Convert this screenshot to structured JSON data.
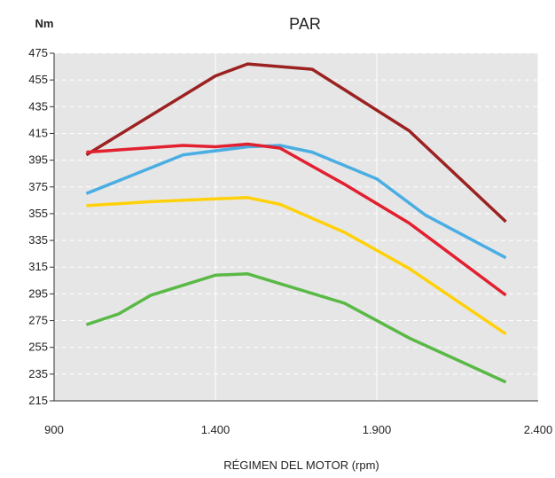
{
  "chart_data": {
    "type": "line",
    "title": "PAR",
    "ylabel": "Nm",
    "xlabel": "RÉGIMEN DEL MOTOR (rpm)",
    "xlim": [
      900,
      2400
    ],
    "ylim": [
      215,
      475
    ],
    "x_ticks": [
      900,
      1400,
      1900,
      2400
    ],
    "x_tick_labels": [
      "900",
      "1.400",
      "1.900",
      "2.400"
    ],
    "y_ticks": [
      215,
      235,
      255,
      275,
      295,
      315,
      335,
      355,
      375,
      395,
      415,
      435,
      455,
      475
    ],
    "grid": true,
    "plot_background": "#e6e6e7",
    "series": [
      {
        "color": "#9b2221",
        "points": [
          [
            1000,
            399
          ],
          [
            1400,
            458
          ],
          [
            1500,
            467
          ],
          [
            1700,
            463
          ],
          [
            2000,
            417
          ],
          [
            2300,
            349
          ]
        ]
      },
      {
        "color": "#4aaee3",
        "points": [
          [
            1000,
            370
          ],
          [
            1300,
            399
          ],
          [
            1500,
            405
          ],
          [
            1600,
            406
          ],
          [
            1700,
            401
          ],
          [
            1900,
            381
          ],
          [
            2050,
            354
          ],
          [
            2300,
            322
          ]
        ]
      },
      {
        "color": "#e2202f",
        "points": [
          [
            1000,
            401
          ],
          [
            1300,
            406
          ],
          [
            1400,
            405
          ],
          [
            1500,
            407
          ],
          [
            1600,
            404
          ],
          [
            1800,
            377
          ],
          [
            2000,
            348
          ],
          [
            2300,
            294
          ]
        ]
      },
      {
        "color": "#ffd10a",
        "points": [
          [
            1000,
            361
          ],
          [
            1200,
            364
          ],
          [
            1400,
            366
          ],
          [
            1500,
            367
          ],
          [
            1600,
            362
          ],
          [
            1800,
            341
          ],
          [
            2000,
            314
          ],
          [
            2300,
            265
          ]
        ]
      },
      {
        "color": "#5ab946",
        "points": [
          [
            1000,
            272
          ],
          [
            1100,
            280
          ],
          [
            1200,
            294
          ],
          [
            1400,
            309
          ],
          [
            1500,
            310
          ],
          [
            1800,
            288
          ],
          [
            2000,
            262
          ],
          [
            2300,
            229
          ]
        ]
      }
    ]
  }
}
